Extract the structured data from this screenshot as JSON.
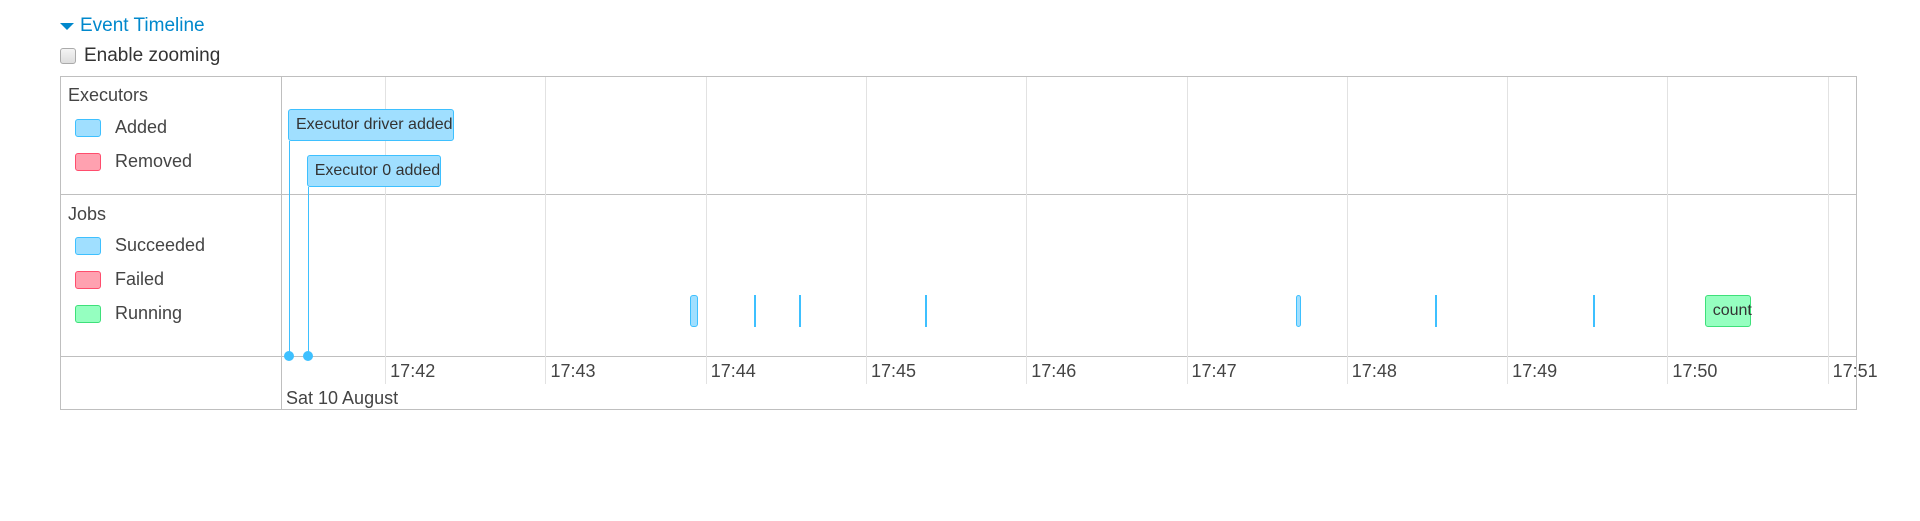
{
  "header": {
    "title": "Event Timeline",
    "zoom_label": "Enable zooming",
    "zoom_checked": false
  },
  "legend": {
    "executors_title": "Executors",
    "executors": [
      {
        "label": "Added",
        "fill": "#A0DFFF",
        "stroke": "#3EC0FF"
      },
      {
        "label": "Removed",
        "fill": "#FFA1B0",
        "stroke": "#FF4D6D"
      }
    ],
    "jobs_title": "Jobs",
    "jobs": [
      {
        "label": "Succeeded",
        "fill": "#A0DFFF",
        "stroke": "#3EC0FF"
      },
      {
        "label": "Failed",
        "fill": "#FFA1B0",
        "stroke": "#FF4D6D"
      },
      {
        "label": "Running",
        "fill": "#95FFC0",
        "stroke": "#3EE07A"
      }
    ]
  },
  "axis": {
    "start": "17:41:21",
    "end": "17:51:11",
    "ticks": [
      "17:42",
      "17:43",
      "17:44",
      "17:45",
      "17:46",
      "17:47",
      "17:48",
      "17:49",
      "17:50",
      "17:51"
    ],
    "date_label": "Sat 10 August"
  },
  "executor_events": [
    {
      "label": "Executor driver added",
      "time": "17:41:24"
    },
    {
      "label": "Executor 0 added",
      "time": "17:41:31"
    }
  ],
  "jobs": [
    {
      "start": "17:43:54",
      "end": "17:43:57",
      "status": "succeeded"
    },
    {
      "start": "17:44:18",
      "end": "17:44:18",
      "status": "succeeded"
    },
    {
      "start": "17:44:35",
      "end": "17:44:35",
      "status": "succeeded"
    },
    {
      "start": "17:45:22",
      "end": "17:45:22",
      "status": "succeeded"
    },
    {
      "start": "17:47:41",
      "end": "17:47:43",
      "status": "succeeded"
    },
    {
      "start": "17:48:33",
      "end": "17:48:33",
      "status": "succeeded"
    },
    {
      "start": "17:49:32",
      "end": "17:49:32",
      "status": "succeeded"
    },
    {
      "start": "17:50:14",
      "end": "17:50:31",
      "status": "running",
      "label": "count"
    }
  ]
}
